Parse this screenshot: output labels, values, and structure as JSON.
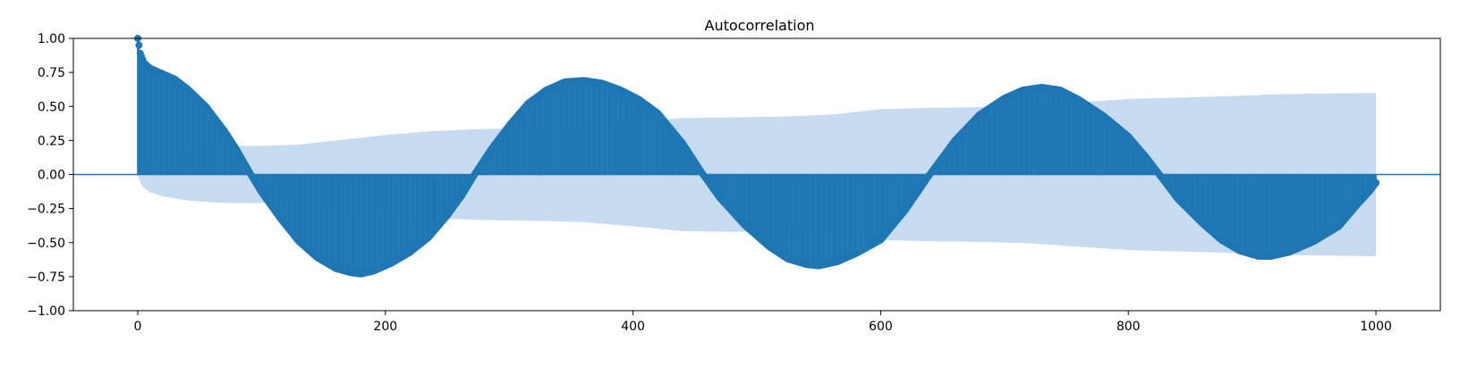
{
  "chart_data": {
    "type": "acf-stem",
    "title": "Autocorrelation",
    "xlabel": "",
    "ylabel": "",
    "xlim": [
      -52,
      1052
    ],
    "ylim": [
      -1.0,
      1.0
    ],
    "max_lag": 1000,
    "grid": false,
    "legend": "none",
    "xticks": [
      0,
      200,
      400,
      600,
      800,
      1000
    ],
    "xtick_labels": [
      "0",
      "200",
      "400",
      "600",
      "800",
      "1000"
    ],
    "yticks": [
      1.0,
      0.75,
      0.5,
      0.25,
      0.0,
      -0.25,
      -0.5,
      -0.75,
      -1.0
    ],
    "ytick_labels": [
      "1.00",
      "0.75",
      "0.50",
      "0.25",
      "0.00",
      "−0.25",
      "−0.50",
      "−0.75",
      "−1.00"
    ],
    "colors": {
      "stem": "#1f77b4",
      "confidence_band": "#c6dbef",
      "zero_line": "#1f77b4"
    },
    "acf_anchors": [
      [
        0,
        1.0
      ],
      [
        1,
        0.95
      ],
      [
        2,
        0.89
      ],
      [
        5,
        0.82
      ],
      [
        10,
        0.78
      ],
      [
        20,
        0.74
      ],
      [
        30,
        0.7
      ],
      [
        40,
        0.63
      ],
      [
        55,
        0.5
      ],
      [
        70,
        0.32
      ],
      [
        80,
        0.18
      ],
      [
        90,
        0.02
      ],
      [
        100,
        -0.13
      ],
      [
        115,
        -0.32
      ],
      [
        130,
        -0.49
      ],
      [
        145,
        -0.61
      ],
      [
        160,
        -0.69
      ],
      [
        172,
        -0.72
      ],
      [
        180,
        -0.73
      ],
      [
        190,
        -0.71
      ],
      [
        205,
        -0.65
      ],
      [
        220,
        -0.57
      ],
      [
        235,
        -0.46
      ],
      [
        250,
        -0.3
      ],
      [
        262,
        -0.15
      ],
      [
        272,
        0.0
      ],
      [
        285,
        0.18
      ],
      [
        300,
        0.36
      ],
      [
        315,
        0.52
      ],
      [
        330,
        0.62
      ],
      [
        345,
        0.68
      ],
      [
        360,
        0.69
      ],
      [
        375,
        0.67
      ],
      [
        390,
        0.62
      ],
      [
        405,
        0.55
      ],
      [
        420,
        0.45
      ],
      [
        440,
        0.23
      ],
      [
        455,
        0.02
      ],
      [
        470,
        -0.17
      ],
      [
        490,
        -0.37
      ],
      [
        510,
        -0.53
      ],
      [
        525,
        -0.62
      ],
      [
        540,
        -0.66
      ],
      [
        550,
        -0.67
      ],
      [
        565,
        -0.64
      ],
      [
        580,
        -0.58
      ],
      [
        600,
        -0.48
      ],
      [
        620,
        -0.26
      ],
      [
        638,
        -0.02
      ],
      [
        660,
        0.25
      ],
      [
        680,
        0.44
      ],
      [
        700,
        0.56
      ],
      [
        715,
        0.62
      ],
      [
        730,
        0.64
      ],
      [
        745,
        0.62
      ],
      [
        760,
        0.55
      ],
      [
        780,
        0.43
      ],
      [
        800,
        0.28
      ],
      [
        815,
        0.12
      ],
      [
        825,
        0.0
      ],
      [
        840,
        -0.18
      ],
      [
        860,
        -0.36
      ],
      [
        875,
        -0.48
      ],
      [
        890,
        -0.56
      ],
      [
        905,
        -0.6
      ],
      [
        915,
        -0.6
      ],
      [
        930,
        -0.57
      ],
      [
        950,
        -0.49
      ],
      [
        970,
        -0.38
      ],
      [
        985,
        -0.22
      ],
      [
        995,
        -0.12
      ],
      [
        1000,
        -0.06
      ]
    ],
    "confidence_anchors": [
      [
        0,
        0.0
      ],
      [
        2,
        0.06
      ],
      [
        5,
        0.1
      ],
      [
        10,
        0.13
      ],
      [
        20,
        0.16
      ],
      [
        40,
        0.19
      ],
      [
        60,
        0.205
      ],
      [
        80,
        0.21
      ],
      [
        100,
        0.21
      ],
      [
        130,
        0.22
      ],
      [
        160,
        0.25
      ],
      [
        200,
        0.29
      ],
      [
        240,
        0.32
      ],
      [
        280,
        0.335
      ],
      [
        320,
        0.34
      ],
      [
        360,
        0.35
      ],
      [
        400,
        0.38
      ],
      [
        440,
        0.415
      ],
      [
        480,
        0.42
      ],
      [
        520,
        0.425
      ],
      [
        560,
        0.44
      ],
      [
        600,
        0.48
      ],
      [
        640,
        0.49
      ],
      [
        680,
        0.495
      ],
      [
        720,
        0.505
      ],
      [
        760,
        0.53
      ],
      [
        800,
        0.555
      ],
      [
        840,
        0.565
      ],
      [
        880,
        0.575
      ],
      [
        920,
        0.59
      ],
      [
        960,
        0.595
      ],
      [
        1000,
        0.6
      ]
    ]
  }
}
